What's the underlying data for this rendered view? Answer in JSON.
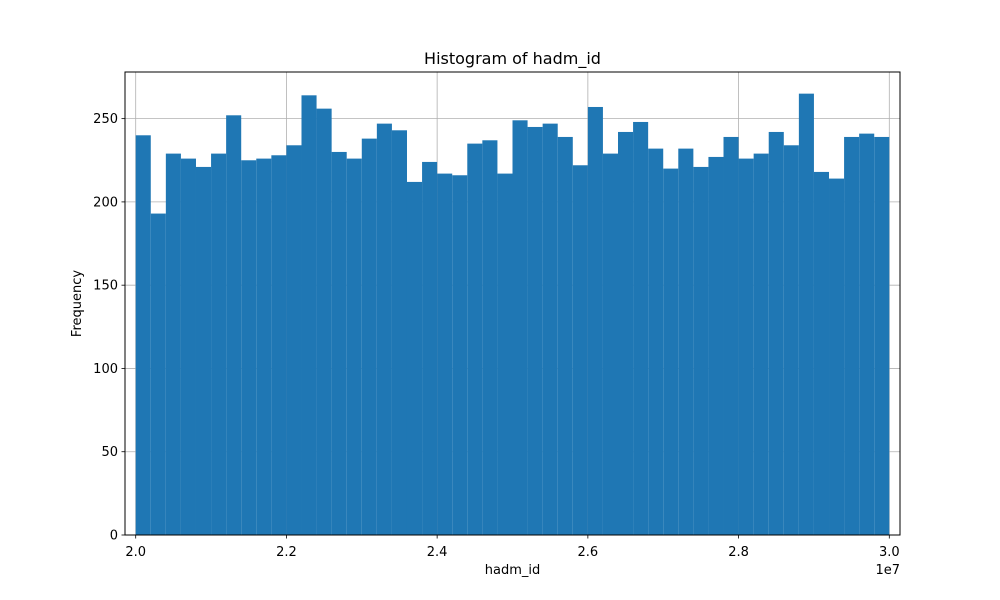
{
  "chart_data": {
    "type": "bar",
    "title": "Histogram of hadm_id",
    "xlabel": "hadm_id",
    "ylabel": "Frequency",
    "x_offset_label": "1e7",
    "bar_color": "#1f77b4",
    "grid": true,
    "xlim": [
      19858000,
      30142000
    ],
    "ylim": [
      0,
      278
    ],
    "xticks": [
      {
        "value": 20000000,
        "label": "2.0"
      },
      {
        "value": 22000000,
        "label": "2.2"
      },
      {
        "value": 24000000,
        "label": "2.4"
      },
      {
        "value": 26000000,
        "label": "2.6"
      },
      {
        "value": 28000000,
        "label": "2.8"
      },
      {
        "value": 30000000,
        "label": "3.0"
      }
    ],
    "yticks": [
      {
        "value": 0,
        "label": "0"
      },
      {
        "value": 50,
        "label": "50"
      },
      {
        "value": 100,
        "label": "100"
      },
      {
        "value": 150,
        "label": "150"
      },
      {
        "value": 200,
        "label": "200"
      },
      {
        "value": 250,
        "label": "250"
      }
    ],
    "bin_start": 20000000,
    "bin_end": 30000000,
    "values": [
      240,
      193,
      229,
      226,
      221,
      229,
      252,
      225,
      226,
      228,
      234,
      264,
      256,
      230,
      226,
      238,
      247,
      243,
      212,
      224,
      217,
      216,
      235,
      237,
      217,
      249,
      245,
      247,
      239,
      222,
      257,
      229,
      242,
      248,
      232,
      220,
      232,
      221,
      227,
      239,
      226,
      229,
      242,
      234,
      265,
      218,
      214,
      239,
      241,
      239
    ]
  }
}
